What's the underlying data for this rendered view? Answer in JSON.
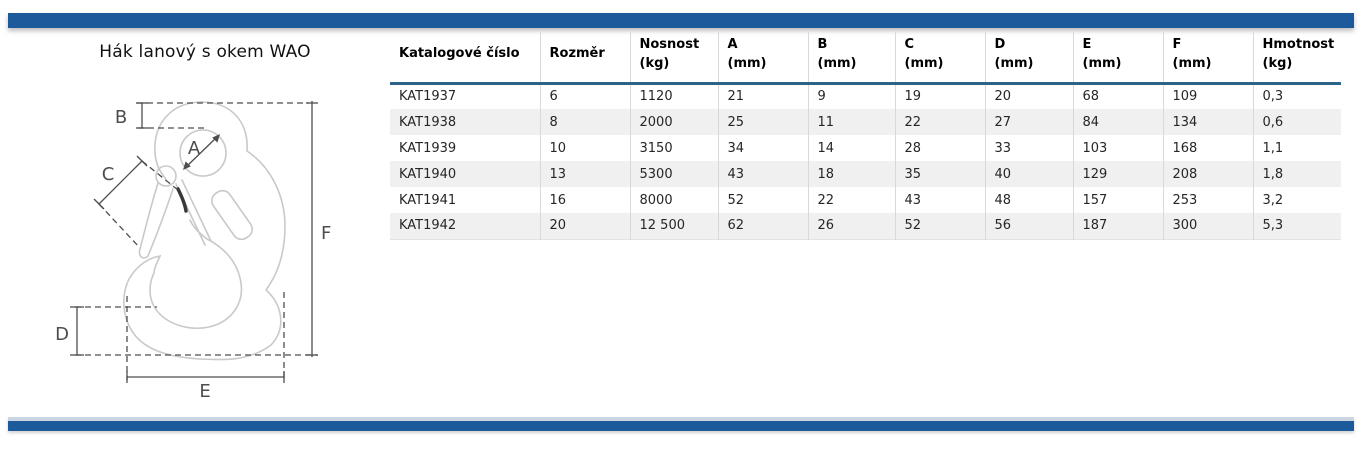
{
  "page": {
    "title": "Hák lanový s okem WAO",
    "accent_bar_color": "#1c5a9c",
    "header_rule_color": "#2c6388"
  },
  "diagram": {
    "description": "technical line drawing of eye sling hook with safety latch and dimension callouts",
    "labels": {
      "a": "A",
      "b": "B",
      "c": "C",
      "d": "D",
      "e": "E",
      "f": "F"
    }
  },
  "table": {
    "columns": [
      {
        "label": "Katalogové číslo"
      },
      {
        "label": "Rozměr"
      },
      {
        "label": "Nosnost\n(kg)"
      },
      {
        "label": "A\n(mm)"
      },
      {
        "label": "B\n(mm)"
      },
      {
        "label": "C\n(mm)"
      },
      {
        "label": "D\n(mm)"
      },
      {
        "label": "E\n(mm)"
      },
      {
        "label": "F\n(mm)"
      },
      {
        "label": "Hmotnost\n(kg)"
      }
    ],
    "rows": [
      [
        "KAT1937",
        "6",
        "1120",
        "21",
        "9",
        "19",
        "20",
        "68",
        "109",
        "0,3"
      ],
      [
        "KAT1938",
        "8",
        "2000",
        "25",
        "11",
        "22",
        "27",
        "84",
        "134",
        "0,6"
      ],
      [
        "KAT1939",
        "10",
        "3150",
        "34",
        "14",
        "28",
        "33",
        "103",
        "168",
        "1,1"
      ],
      [
        "KAT1940",
        "13",
        "5300",
        "43",
        "18",
        "35",
        "40",
        "129",
        "208",
        "1,8"
      ],
      [
        "KAT1941",
        "16",
        "8000",
        "52",
        "22",
        "43",
        "48",
        "157",
        "253",
        "3,2"
      ],
      [
        "KAT1942",
        "20",
        "12 500",
        "62",
        "26",
        "52",
        "56",
        "187",
        "300",
        "5,3"
      ]
    ]
  }
}
